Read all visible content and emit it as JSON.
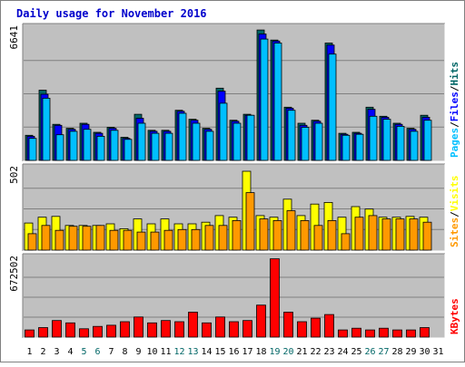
{
  "chart_data": {
    "type": "bar",
    "title": "Daily usage for November 2016",
    "days": [
      "1",
      "2",
      "3",
      "4",
      "5",
      "6",
      "7",
      "8",
      "9",
      "10",
      "11",
      "12",
      "13",
      "14",
      "15",
      "16",
      "17",
      "18",
      "19",
      "20",
      "21",
      "22",
      "23",
      "24",
      "25",
      "26",
      "27",
      "28",
      "29",
      "30",
      "31"
    ],
    "weekend_days": [
      "5",
      "6",
      "12",
      "13",
      "19",
      "20",
      "26",
      "27"
    ],
    "panels": [
      {
        "id": "hits",
        "ymax_label": "6641",
        "ymax": 6641,
        "legend": [
          "Pages",
          "Files",
          "Hits"
        ],
        "series": [
          {
            "name": "Hits",
            "color": "#006666",
            "values": [
              1250,
              3500,
              1800,
              1600,
              1850,
              1400,
              1650,
              1150,
              2300,
              1500,
              1500,
              2500,
              2050,
              1600,
              3600,
              2000,
              2300,
              6500,
              6000,
              2650,
              1850,
              2000,
              5850,
              1350,
              1400,
              2650,
              2200,
              1850,
              1600,
              2250
            ]
          },
          {
            "name": "Files",
            "color": "#0000ff",
            "values": [
              1200,
              3300,
              1750,
              1550,
              1800,
              1350,
              1600,
              1100,
              2100,
              1450,
              1450,
              2450,
              2000,
              1550,
              3450,
              1950,
              2250,
              6300,
              5950,
              2600,
              1750,
              1950,
              5750,
              1300,
              1350,
              2550,
              2150,
              1800,
              1550,
              2150
            ]
          },
          {
            "name": "Pages",
            "color": "#00bfff",
            "values": [
              1100,
              3100,
              1280,
              1450,
              1550,
              1200,
              1500,
              1050,
              1850,
              1350,
              1350,
              2350,
              1850,
              1450,
              2850,
              1850,
              2250,
              6050,
              5850,
              2500,
              1650,
              1850,
              5300,
              1250,
              1300,
              2200,
              2050,
              1700,
              1450,
              2000
            ]
          }
        ]
      },
      {
        "id": "visits",
        "ymax_label": "502",
        "ymax": 502,
        "legend": [
          "Sites",
          "Visits"
        ],
        "series": [
          {
            "name": "Visits",
            "color": "#ffff00",
            "values": [
              165,
              200,
              205,
              150,
              150,
              150,
              160,
              130,
              190,
              160,
              190,
              160,
              160,
              170,
              210,
              200,
              480,
              210,
              200,
              310,
              210,
              280,
              290,
              200,
              265,
              250,
              200,
              200,
              205,
              200
            ],
            "outline": "#b3b300"
          },
          {
            "name": "Sites",
            "color": "#ff9900",
            "values": [
              100,
              150,
              120,
              145,
              145,
              150,
              120,
              120,
              110,
              110,
              120,
              125,
              125,
              150,
              150,
              180,
              350,
              190,
              180,
              240,
              180,
              150,
              180,
              100,
              200,
              210,
              190,
              190,
              190,
              170
            ]
          }
        ]
      },
      {
        "id": "kbytes",
        "ymax_label": "672502",
        "ymax": 672502,
        "legend": [
          "KBytes"
        ],
        "series": [
          {
            "name": "KBytes",
            "color": "#ff0000",
            "values": [
              60000,
              80000,
              140000,
              120000,
              70000,
              90000,
              100000,
              130000,
              170000,
              120000,
              140000,
              130000,
              210000,
              120000,
              170000,
              130000,
              140000,
              270000,
              660000,
              210000,
              130000,
              160000,
              190000,
              60000,
              75000,
              60000,
              75000,
              60000,
              60000,
              80000
            ]
          }
        ]
      }
    ]
  },
  "colors": {
    "background": "#ffffff",
    "panel_bg": "#c0c0c0",
    "title": "#0000cc",
    "grid": "#808080",
    "weekday_label": "#000000",
    "weekend_label": "#006666"
  }
}
